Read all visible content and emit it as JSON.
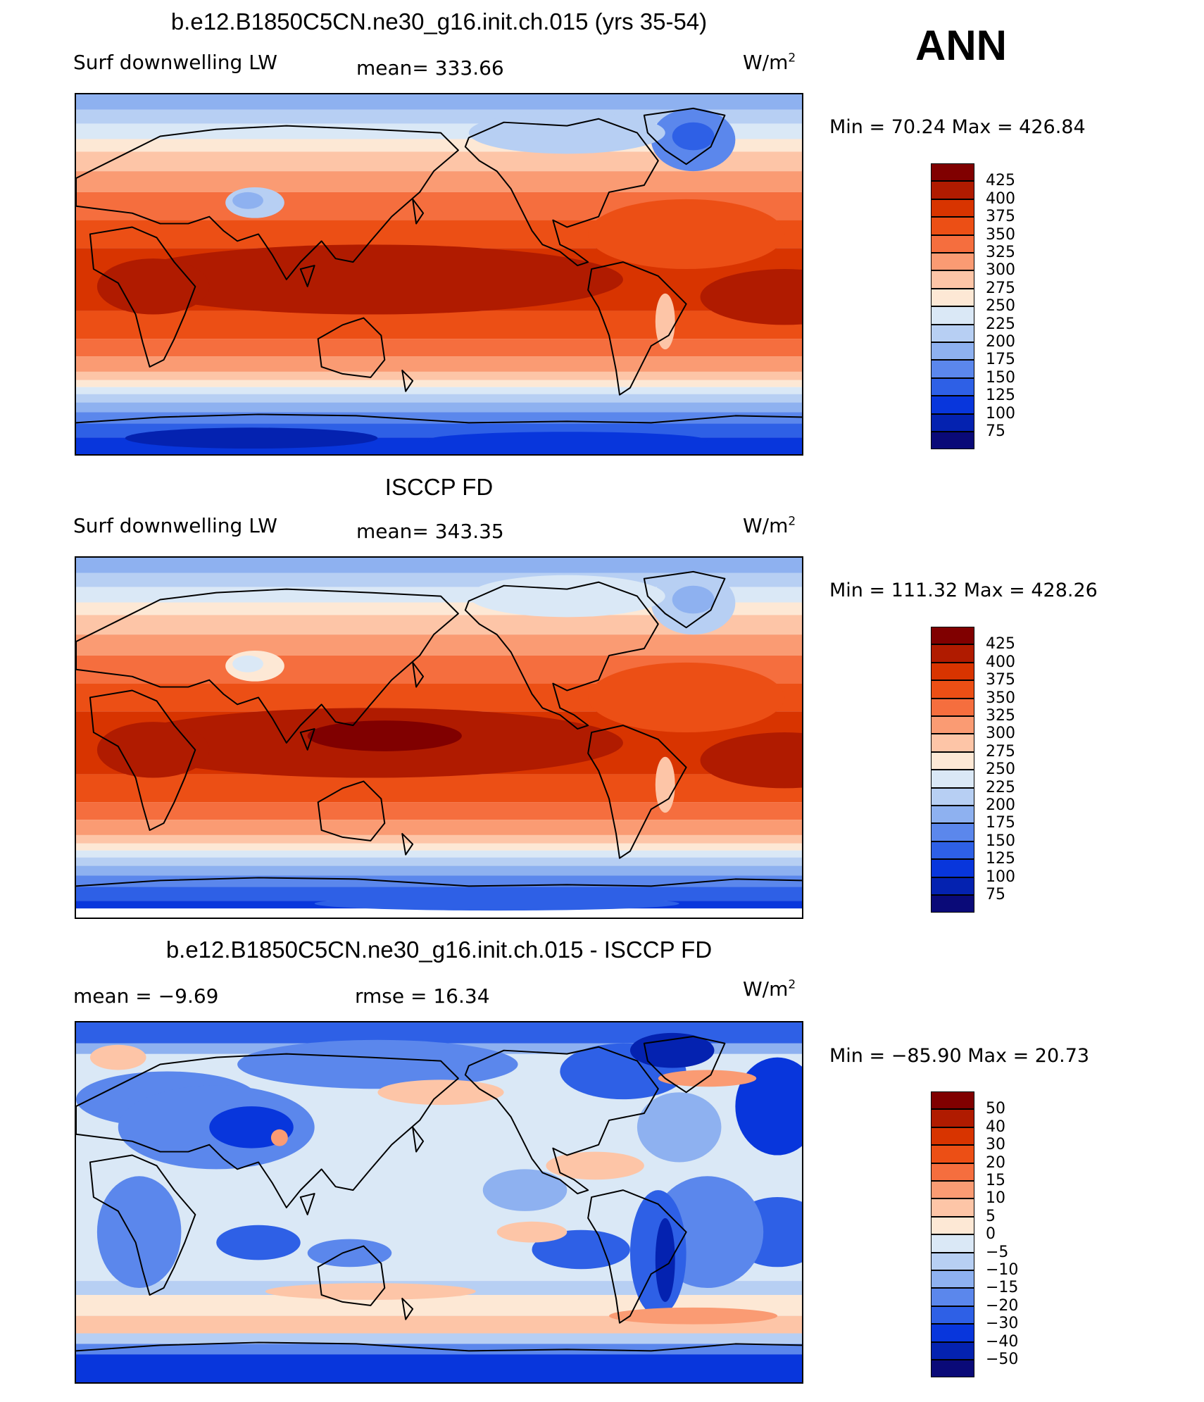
{
  "corner_label": "ANN",
  "coastline_color": "#000000",
  "panels": [
    {
      "title": "b.e12.B1850C5CN.ne30_g16.init.ch.015 (yrs 35-54)",
      "left_label": "Surf downwelling LW",
      "stat_label": "mean= 333.66",
      "stat2_label": "",
      "units": "W/m",
      "units_sup": "2",
      "minmax": "Min =   70.24  Max  =  426.84",
      "field": "model",
      "colorbar": {
        "labels": [
          "425",
          "400",
          "375",
          "350",
          "325",
          "300",
          "275",
          "250",
          "225",
          "200",
          "175",
          "150",
          "125",
          "100",
          "75"
        ],
        "colors": [
          "#800000",
          "#b01b00",
          "#d83400",
          "#ec4f15",
          "#f56e3e",
          "#fa9b73",
          "#fdc5a7",
          "#fde8d5",
          "#dae8f6",
          "#b7cff3",
          "#8eb1f0",
          "#5b87ec",
          "#2e60e6",
          "#0836dc",
          "#0422b0",
          "#0a0a78"
        ]
      }
    },
    {
      "title": "ISCCP FD",
      "left_label": "Surf downwelling LW",
      "stat_label": "mean= 343.35",
      "stat2_label": "",
      "units": "W/m",
      "units_sup": "2",
      "minmax": "Min  =  111.32  Max  =  428.26",
      "field": "obs",
      "colorbar": {
        "labels": [
          "425",
          "400",
          "375",
          "350",
          "325",
          "300",
          "275",
          "250",
          "225",
          "200",
          "175",
          "150",
          "125",
          "100",
          "75"
        ],
        "colors": [
          "#800000",
          "#b01b00",
          "#d83400",
          "#ec4f15",
          "#f56e3e",
          "#fa9b73",
          "#fdc5a7",
          "#fde8d5",
          "#dae8f6",
          "#b7cff3",
          "#8eb1f0",
          "#5b87ec",
          "#2e60e6",
          "#0836dc",
          "#0422b0",
          "#0a0a78"
        ]
      }
    },
    {
      "title": "b.e12.B1850C5CN.ne30_g16.init.ch.015 - ISCCP FD",
      "left_label": "mean =   −9.69",
      "stat_label": "",
      "stat2_label": "rmse =   16.34",
      "units": "W/m",
      "units_sup": "2",
      "minmax": "Min  =  −85.90  Max  =   20.73",
      "field": "diff",
      "colorbar": {
        "labels": [
          "50",
          "40",
          "30",
          "20",
          "15",
          "10",
          "5",
          "0",
          "−5",
          "−10",
          "−15",
          "−20",
          "−30",
          "−40",
          "−50"
        ],
        "colors": [
          "#800000",
          "#b01b00",
          "#d83400",
          "#ec4f15",
          "#f56e3e",
          "#fa9b73",
          "#fdc5a7",
          "#fde8d5",
          "#dae8f6",
          "#b7cff3",
          "#8eb1f0",
          "#5b87ec",
          "#2e60e6",
          "#0836dc",
          "#0422b0",
          "#0a0a78"
        ]
      }
    }
  ]
}
